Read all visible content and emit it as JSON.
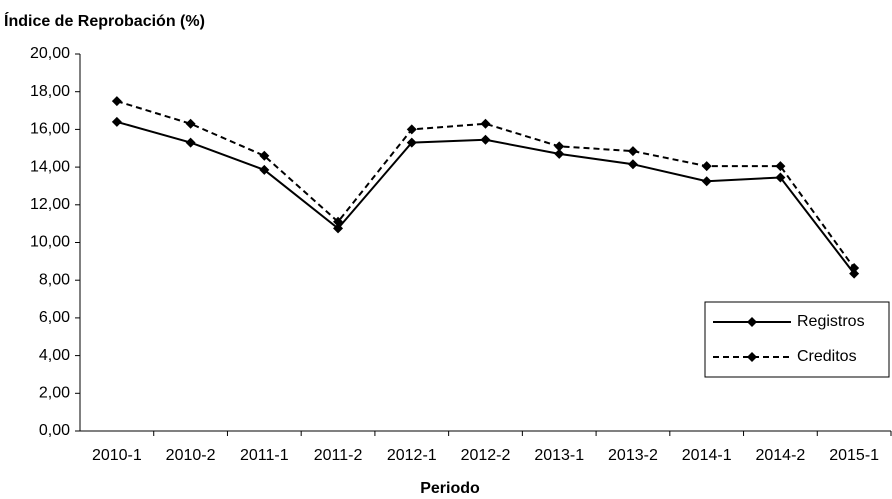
{
  "chart_data": {
    "type": "line",
    "title": "Índice de Reprobación (%)",
    "x_label": "Periodo",
    "categories": [
      "2010-1",
      "2010-2",
      "2011-1",
      "2011-2",
      "2012-1",
      "2012-2",
      "2013-1",
      "2013-2",
      "2014-1",
      "2014-2",
      "2015-1"
    ],
    "series": [
      {
        "name": "Registros",
        "color": "#000000",
        "line_style": "solid",
        "marker": "diamond",
        "values": [
          16.4,
          15.3,
          13.85,
          10.75,
          15.3,
          15.45,
          14.7,
          14.15,
          13.25,
          13.45,
          8.35
        ]
      },
      {
        "name": "Creditos",
        "color": "#000000",
        "line_style": "dashed",
        "marker": "diamond",
        "values": [
          17.5,
          16.3,
          14.6,
          11.1,
          16.0,
          16.3,
          15.1,
          14.85,
          14.05,
          14.05,
          8.65
        ]
      }
    ],
    "ylim": [
      0,
      20
    ],
    "yticks": [
      {
        "value": 0,
        "label": "0,00"
      },
      {
        "value": 2,
        "label": "2,00"
      },
      {
        "value": 4,
        "label": "4,00"
      },
      {
        "value": 6,
        "label": "6,00"
      },
      {
        "value": 8,
        "label": "8,00"
      },
      {
        "value": 10,
        "label": "10,00"
      },
      {
        "value": 12,
        "label": "12,00"
      },
      {
        "value": 14,
        "label": "14,00"
      },
      {
        "value": 16,
        "label": "16,00"
      },
      {
        "value": 18,
        "label": "18,00"
      },
      {
        "value": 20,
        "label": "20,00"
      }
    ],
    "grid": false,
    "legend_position": "lower right"
  }
}
